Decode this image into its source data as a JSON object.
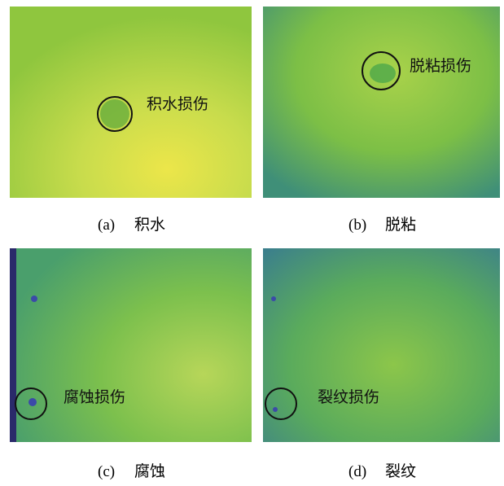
{
  "panels": [
    {
      "tag": "(a)",
      "caption": "积水",
      "annotation": "积水损伤"
    },
    {
      "tag": "(b)",
      "caption": "脱粘",
      "annotation": "脱粘损伤"
    },
    {
      "tag": "(c)",
      "caption": "腐蚀",
      "annotation": "腐蚀损伤"
    },
    {
      "tag": "(d)",
      "caption": "裂纹",
      "annotation": "裂纹损伤"
    }
  ]
}
